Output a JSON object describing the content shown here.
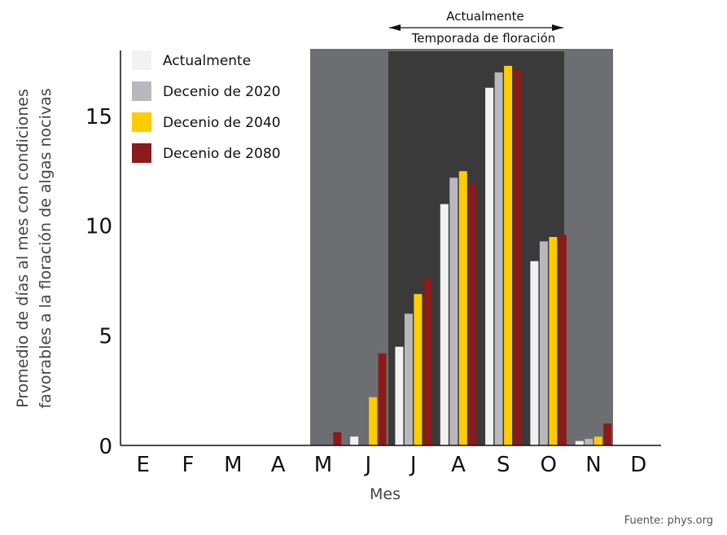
{
  "chart_data": {
    "type": "bar",
    "categories": [
      "E",
      "F",
      "M",
      "A",
      "M",
      "J",
      "J",
      "A",
      "S",
      "O",
      "N",
      "D"
    ],
    "series": [
      {
        "name": "Actualmente",
        "color": "#f2f2f2",
        "values": [
          0,
          0,
          0,
          0,
          0,
          0.4,
          4.5,
          11.0,
          16.3,
          8.4,
          0.2,
          0
        ]
      },
      {
        "name": "Decenio de 2020",
        "color": "#b9b9bd",
        "values": [
          0,
          0,
          0,
          0,
          0,
          0,
          6.0,
          12.2,
          17.0,
          9.3,
          0.3,
          0
        ]
      },
      {
        "name": "Decenio de 2040",
        "color": "#ffcc00",
        "values": [
          0,
          0,
          0,
          0,
          0,
          2.2,
          6.9,
          12.5,
          17.3,
          9.5,
          0.4,
          0
        ]
      },
      {
        "name": "Decenio de 2080",
        "color": "#8b1a1a",
        "values": [
          0,
          0,
          0,
          0,
          0.6,
          4.2,
          7.6,
          11.9,
          17.1,
          9.6,
          1.0,
          0
        ]
      }
    ],
    "yticks": [
      0,
      5,
      10,
      15
    ],
    "ylim": [
      0,
      18
    ],
    "xlabel": "Mes",
    "ylabel_lines": [
      "Promedio de días al mes con condiciones",
      "favorables a la floración de algas nocivas"
    ],
    "annotations": {
      "bloom_season_label": "Temporada de floración",
      "current_label": "Actualmente"
    },
    "shading": {
      "outer_color": "#6d6e71",
      "inner_color": "#3a3a3a"
    },
    "source": "Fuente: phys.org"
  }
}
